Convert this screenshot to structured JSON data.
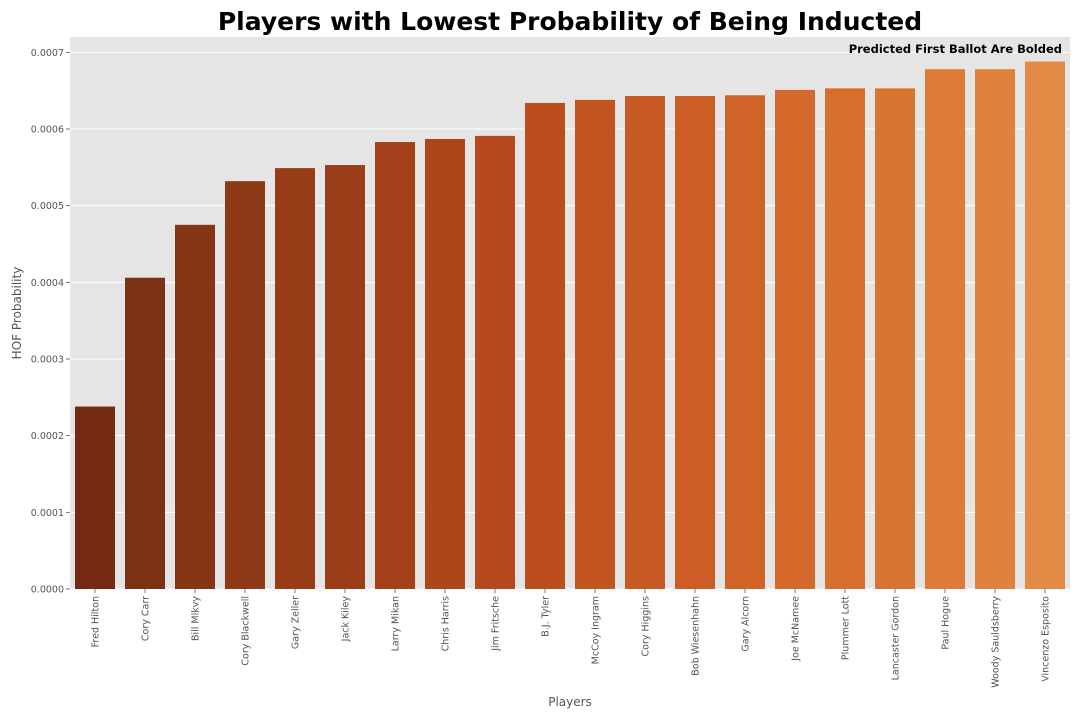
{
  "chart_data": {
    "type": "bar",
    "title": "Players with Lowest Probability of Being Inducted",
    "xlabel": "Players",
    "ylabel": "HOF Probability",
    "annotation": "Predicted First Ballot Are Bolded",
    "ylim": [
      0,
      0.00072
    ],
    "yticks": [
      "0.0000",
      "0.0001",
      "0.0002",
      "0.0003",
      "0.0004",
      "0.0005",
      "0.0006",
      "0.0007"
    ],
    "grid": true,
    "categories": [
      "Fred Hilton",
      "Cory Carr",
      "Bill Mlkvy",
      "Cory Blackwell",
      "Gary Zeller",
      "Jack Kiley",
      "Larry Mikan",
      "Chris Harris",
      "Jim Fritsche",
      "B.J. Tyler",
      "McCoy Ingram",
      "Cory Higgins",
      "Bob Wiesenhahn",
      "Gary Alcorn",
      "Joe McNamee",
      "Plummer Lott",
      "Lancaster Gordon",
      "Paul Hogue",
      "Woody Sauldsberry",
      "Vincenzo Esposito"
    ],
    "values": [
      0.000238,
      0.000406,
      0.000475,
      0.000532,
      0.000549,
      0.000553,
      0.000583,
      0.000587,
      0.000591,
      0.000634,
      0.000638,
      0.000643,
      0.000643,
      0.000644,
      0.000651,
      0.000653,
      0.000653,
      0.000678,
      0.000678,
      0.000688
    ],
    "colors": [
      "#742a12",
      "#7d3114",
      "#863515",
      "#8f3a17",
      "#963d18",
      "#9a3e19",
      "#a3411a",
      "#ae461b",
      "#b5491c",
      "#bc4e1e",
      "#c1541f",
      "#c75a22",
      "#cc5e25",
      "#d06327",
      "#d4692b",
      "#d66f2e",
      "#d87432",
      "#dd7b38",
      "#e0813d",
      "#e38a47"
    ],
    "background": "#e5e5e5"
  }
}
